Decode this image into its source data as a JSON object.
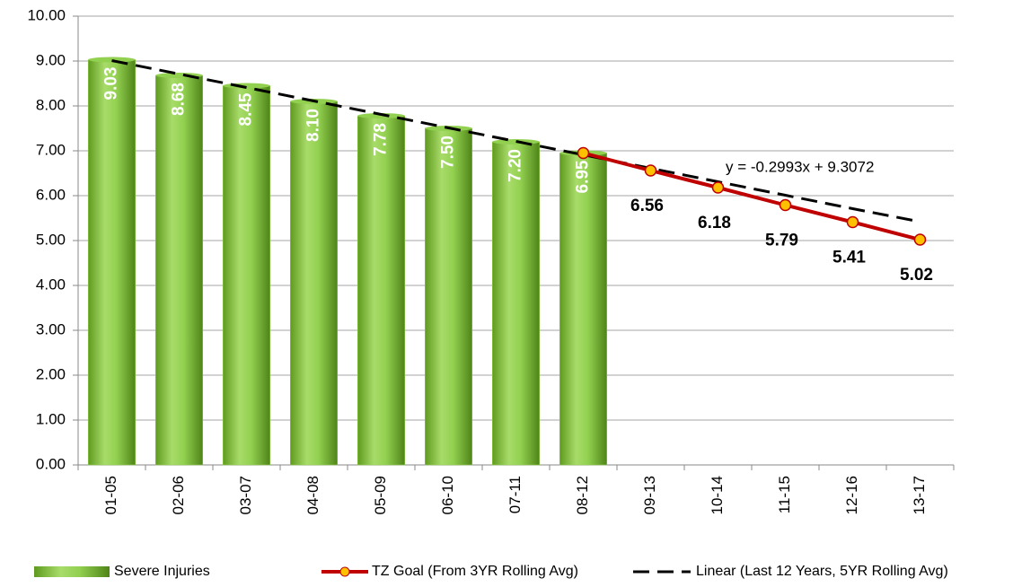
{
  "chart_data": {
    "type": "bar",
    "categories": [
      "01-05",
      "02-06",
      "03-07",
      "04-08",
      "05-09",
      "06-10",
      "07-11",
      "08-12",
      "09-13",
      "10-14",
      "11-15",
      "12-16",
      "13-17"
    ],
    "series": [
      {
        "name": "Severe Injuries",
        "type": "bar",
        "color": "#92d050",
        "values": [
          9.03,
          8.68,
          8.45,
          8.1,
          7.78,
          7.5,
          7.2,
          6.95,
          null,
          null,
          null,
          null,
          null
        ],
        "value_labels": [
          "9.03",
          "8.68",
          "8.45",
          "8.10",
          "7.78",
          "7.50",
          "7.20",
          "6.95",
          null,
          null,
          null,
          null,
          null
        ]
      },
      {
        "name": "TZ Goal (From 3YR Rolling Avg)",
        "type": "line",
        "color": "#c00000",
        "marker_color": "#ffc000",
        "values": [
          null,
          null,
          null,
          null,
          null,
          null,
          null,
          6.95,
          6.56,
          6.18,
          5.79,
          5.41,
          5.02
        ],
        "value_labels": [
          null,
          null,
          null,
          null,
          null,
          null,
          null,
          null,
          "6.56",
          "6.18",
          "5.79",
          "5.41",
          "5.02"
        ]
      },
      {
        "name": "Linear (Last 12 Years, 5YR Rolling Avg)",
        "type": "trend",
        "color": "#000000",
        "values": [
          9.01,
          8.71,
          8.41,
          8.11,
          7.81,
          7.51,
          7.21,
          6.91,
          6.61,
          6.31,
          6.01,
          5.71,
          5.42
        ]
      }
    ],
    "annotation": "y = -0.2993x + 9.3072",
    "ylim": [
      0,
      10
    ],
    "yticks": [
      {
        "value": 0,
        "label": "0.00"
      },
      {
        "value": 1,
        "label": "1.00"
      },
      {
        "value": 2,
        "label": "2.00"
      },
      {
        "value": 3,
        "label": "3.00"
      },
      {
        "value": 4,
        "label": "4.00"
      },
      {
        "value": 5,
        "label": "5.00"
      },
      {
        "value": 6,
        "label": "6.00"
      },
      {
        "value": 7,
        "label": "7.00"
      },
      {
        "value": 8,
        "label": "8.00"
      },
      {
        "value": 9,
        "label": "9.00"
      },
      {
        "value": 10,
        "label": "10.00"
      }
    ],
    "grid": true,
    "legend": "bottom"
  }
}
